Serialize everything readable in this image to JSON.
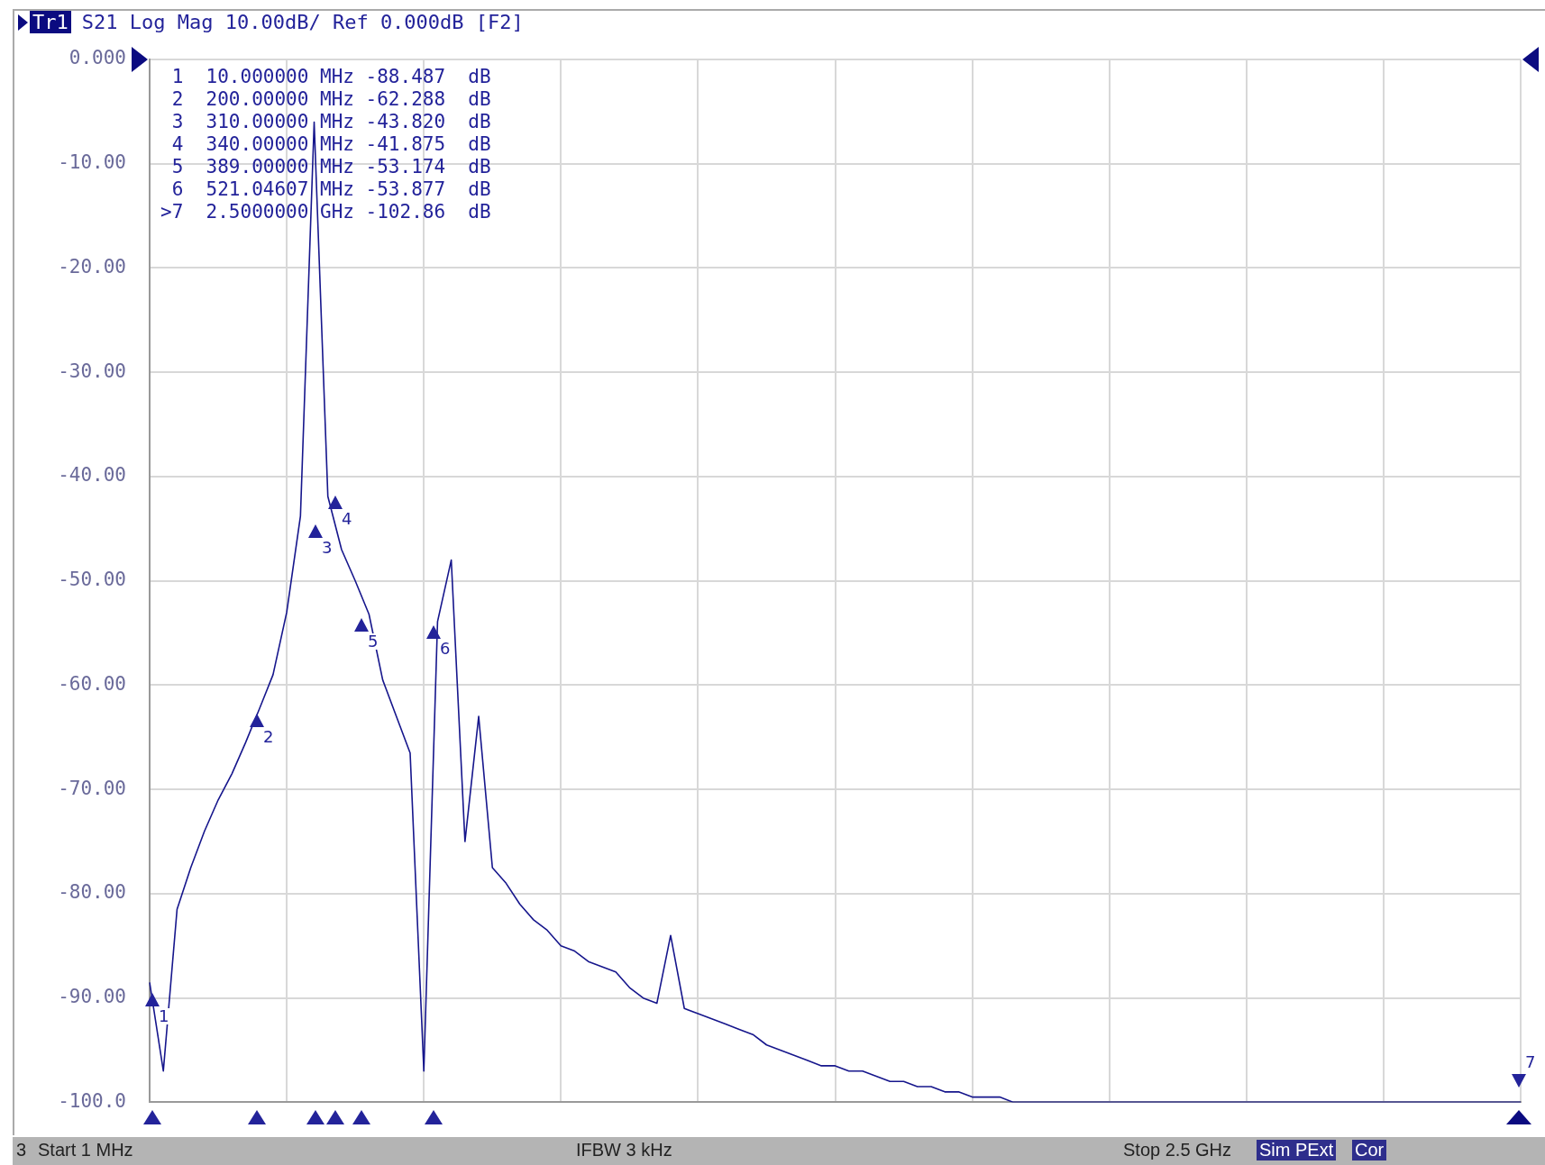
{
  "chart_data": {
    "type": "line",
    "title": "S21 Log Mag 10.00dB/ Ref 0.000dB [F2]",
    "subtitle": "Tr1",
    "categories": [
      null,
      null,
      null,
      null,
      null,
      null,
      null,
      null,
      null,
      null,
      null,
      null,
      null,
      null,
      null,
      null,
      null,
      null,
      null,
      null,
      null,
      null,
      null,
      null,
      null,
      null,
      null,
      null,
      null,
      null,
      null,
      null,
      null,
      null,
      null,
      null,
      null,
      null,
      null,
      null,
      null,
      null,
      null,
      null,
      null,
      null,
      null,
      null,
      null,
      null,
      null,
      null,
      null,
      null,
      null,
      null,
      null,
      null,
      null,
      null,
      null,
      null,
      null,
      null,
      null,
      null,
      null,
      null,
      null,
      null,
      null,
      null,
      null,
      null,
      null,
      null,
      null,
      null,
      null,
      null,
      null,
      null,
      null,
      null,
      null,
      null,
      null,
      null,
      null,
      null,
      null,
      null,
      null,
      null,
      null,
      null,
      null,
      null,
      null,
      null,
      null
    ],
    "series": [
      {
        "color": "#16168c",
        "values": [
          -88.5,
          -97,
          -81.5,
          -77.5,
          -74,
          -71,
          -68.5,
          -65.5,
          -62.3,
          -59,
          -53,
          -43.8,
          -6,
          -41.9,
          -47,
          -50,
          -53.2,
          -59.5,
          -63,
          -66.5,
          -97,
          -53.9,
          -48,
          -75,
          -63,
          -77.5,
          -79,
          -81,
          -82.5,
          -83.5,
          -85,
          -85.5,
          -86.5,
          -87,
          -87.5,
          -89,
          -90,
          -90.5,
          -84,
          -91,
          -91.5,
          -92,
          -92.5,
          -93,
          -93.5,
          -94.5,
          -95,
          -95.5,
          -96,
          -96.5,
          -96.5,
          -97,
          -97,
          -97.5,
          -98,
          -98,
          -98.5,
          -98.5,
          -99,
          -99,
          -99.5,
          -99.5,
          -99.5,
          -100,
          -100,
          -100,
          -100,
          -100,
          -100,
          -100,
          -100,
          -100,
          -100,
          -100,
          -100,
          -100,
          -100,
          -100,
          -100,
          -100,
          -100,
          -100,
          -100,
          -100,
          -100,
          -100,
          -100,
          -100,
          -100,
          -100,
          -100,
          -100,
          -100,
          -100,
          -100,
          -100,
          -100,
          -100,
          -100,
          -100,
          -100
        ]
      }
    ],
    "ylim": [
      -100,
      0
    ],
    "yticks": [
      {
        "value": 0,
        "label": "0.000"
      },
      {
        "value": -10,
        "label": "-10.00"
      },
      {
        "value": -20,
        "label": "-20.00"
      },
      {
        "value": -30,
        "label": "-30.00"
      },
      {
        "value": -40,
        "label": "-40.00"
      },
      {
        "value": -50,
        "label": "-50.00"
      },
      {
        "value": -60,
        "label": "-60.00"
      },
      {
        "value": -70,
        "label": "-70.00"
      },
      {
        "value": -80,
        "label": "-80.00"
      },
      {
        "value": -90,
        "label": "-90.00"
      },
      {
        "value": -100,
        "label": "-100.0"
      }
    ],
    "tick_labels": "y",
    "grid": true,
    "line_style": "solid",
    "annotations": [
      " 1  10.000000 MHz -88.487  dB",
      " 2  200.00000 MHz -62.288  dB",
      " 3  310.00000 MHz -43.820  dB",
      " 4  340.00000 MHz -41.875  dB",
      " 5  389.00000 MHz -53.174  dB",
      " 6  521.04607 MHz -53.877  dB",
      ">7  2.5000000 GHz -102.86  dB",
      "3",
      "Start 1 MHz",
      "IFBW 3 kHz",
      "Stop 2.5 GHz",
      "Sim",
      "PExt",
      "Cor",
      "1",
      "2",
      "3",
      "4",
      "5",
      "6",
      "7"
    ]
  }
}
